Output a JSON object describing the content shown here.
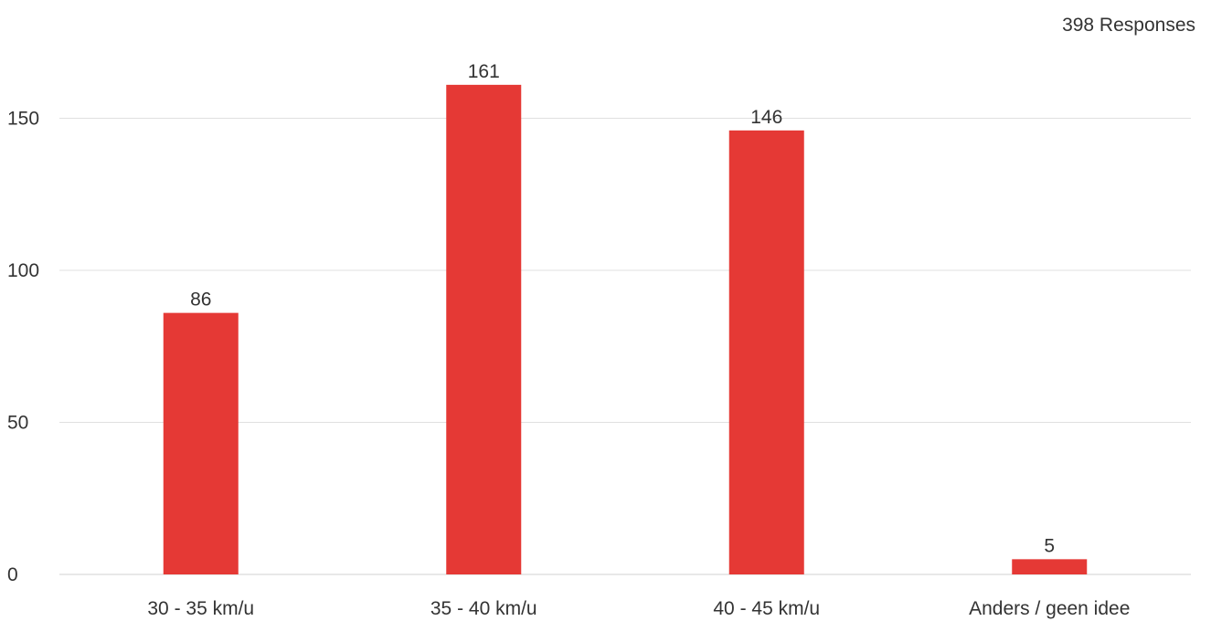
{
  "header": {
    "responses_label": "398 Responses"
  },
  "colors": {
    "bar": "#e53935",
    "grid": "#e0e0e0",
    "text": "#333333"
  },
  "chart_data": {
    "type": "bar",
    "categories": [
      "30 - 35 km/u",
      "35 - 40 km/u",
      "40 - 45 km/u",
      "Anders / geen idee"
    ],
    "values": [
      86,
      161,
      146,
      5
    ],
    "data_labels": [
      "86",
      "161",
      "146",
      "5"
    ],
    "yticks": [
      0,
      50,
      100,
      150
    ],
    "ytick_labels": [
      "0",
      "50",
      "100",
      "150"
    ],
    "ylim": [
      0,
      165
    ],
    "grid": true,
    "legend": false
  }
}
